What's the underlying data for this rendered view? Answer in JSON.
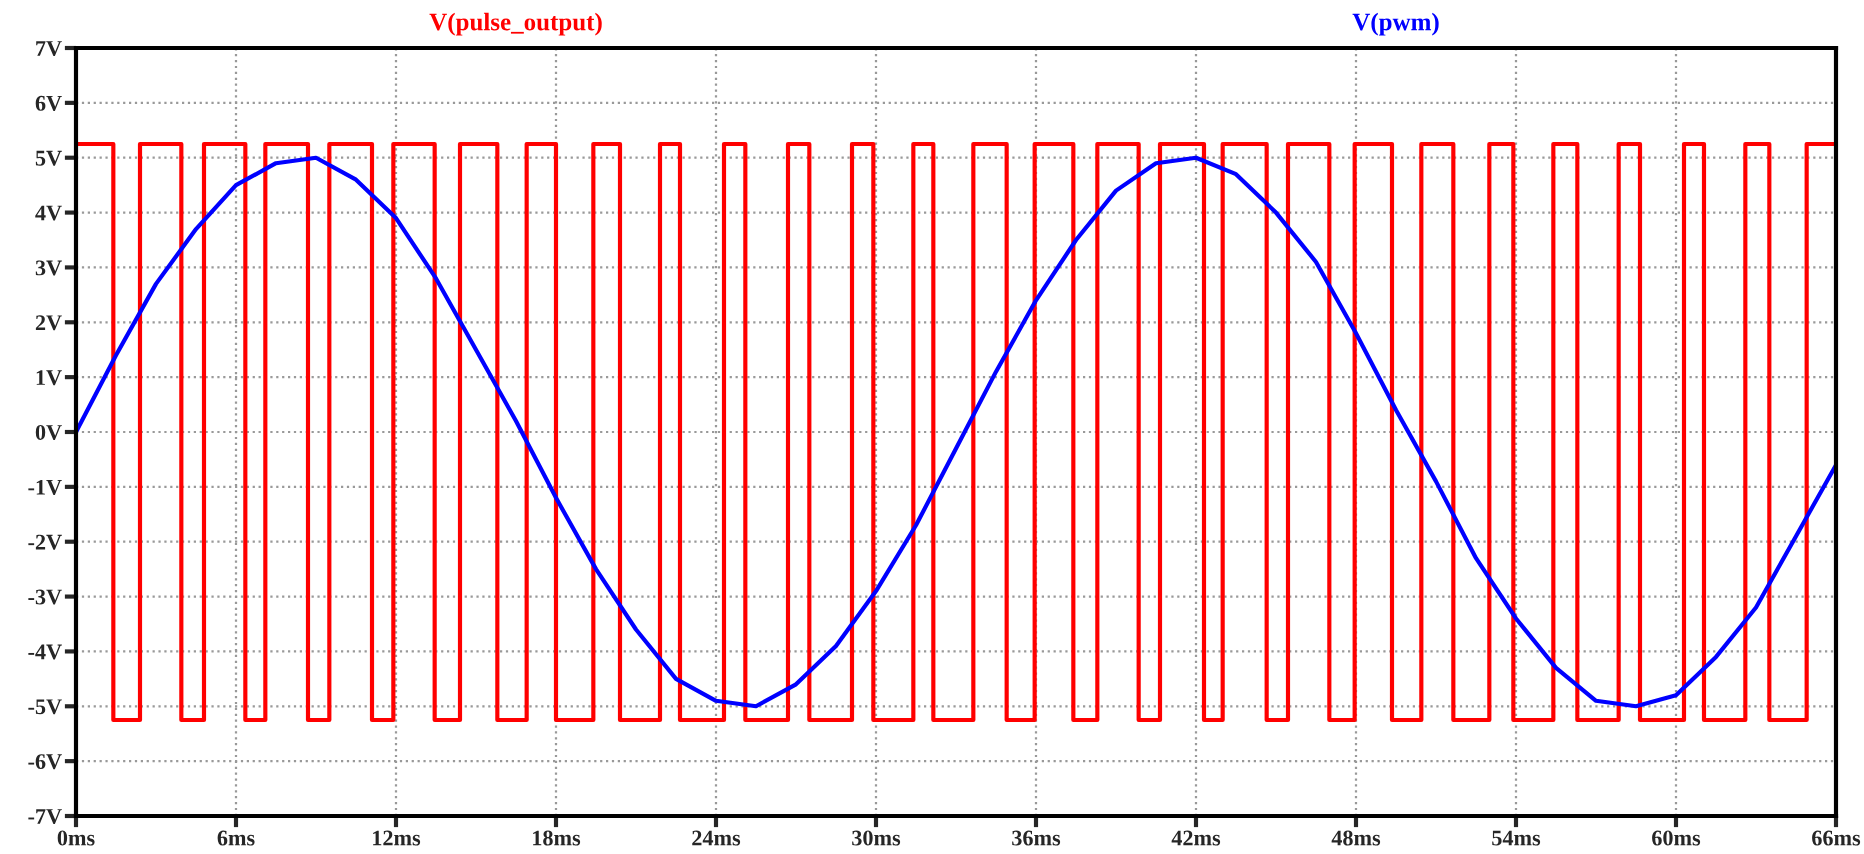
{
  "chart_data": {
    "type": "line",
    "xlim": [
      0,
      66
    ],
    "ylim": [
      -7,
      7
    ],
    "xticks": [
      {
        "value": 0,
        "label": "0ms"
      },
      {
        "value": 6,
        "label": "6ms"
      },
      {
        "value": 12,
        "label": "12ms"
      },
      {
        "value": 18,
        "label": "18ms"
      },
      {
        "value": 24,
        "label": "24ms"
      },
      {
        "value": 30,
        "label": "30ms"
      },
      {
        "value": 36,
        "label": "36ms"
      },
      {
        "value": 42,
        "label": "42ms"
      },
      {
        "value": 48,
        "label": "48ms"
      },
      {
        "value": 54,
        "label": "54ms"
      },
      {
        "value": 60,
        "label": "60ms"
      },
      {
        "value": 66,
        "label": "66ms"
      }
    ],
    "yticks": [
      {
        "value": -7,
        "label": "-7V"
      },
      {
        "value": -6,
        "label": "-6V"
      },
      {
        "value": -5,
        "label": "-5V"
      },
      {
        "value": -4,
        "label": "-4V"
      },
      {
        "value": -3,
        "label": "-3V"
      },
      {
        "value": -2,
        "label": "-2V"
      },
      {
        "value": -1,
        "label": "-1V"
      },
      {
        "value": 0,
        "label": "0V"
      },
      {
        "value": 1,
        "label": "1V"
      },
      {
        "value": 2,
        "label": "2V"
      },
      {
        "value": 3,
        "label": "3V"
      },
      {
        "value": 4,
        "label": "4V"
      },
      {
        "value": 5,
        "label": "5V"
      },
      {
        "value": 6,
        "label": "6V"
      },
      {
        "value": 7,
        "label": "7V"
      }
    ],
    "grid": true,
    "legend": "top",
    "line_style": "solid",
    "marker": "none",
    "series": [
      {
        "name": "V(pulse_output)",
        "type": "step",
        "color": "#ff0000",
        "x": [
          0,
          1.4,
          2.4,
          3.95,
          4.8,
          6.35,
          7.1,
          8.7,
          9.5,
          11.1,
          11.9,
          13.45,
          14.4,
          15.8,
          16.9,
          18.0,
          19.4,
          20.4,
          21.9,
          22.65,
          24.3,
          25.1,
          26.7,
          27.5,
          29.1,
          29.9,
          31.4,
          32.15,
          33.65,
          34.9,
          35.95,
          37.4,
          38.3,
          39.85,
          40.65,
          42.3,
          43.0,
          44.65,
          45.45,
          47.0,
          47.95,
          49.35,
          50.45,
          51.65,
          53.0,
          53.9,
          55.4,
          56.3,
          57.85,
          58.65,
          60.3,
          61.05,
          62.6,
          63.5,
          64.9,
          66
        ],
        "values": [
          5.25,
          -5.25,
          5.25,
          -5.25,
          5.25,
          -5.25,
          5.25,
          -5.25,
          5.25,
          -5.25,
          5.25,
          -5.25,
          5.25,
          -5.25,
          5.25,
          -5.25,
          5.25,
          -5.25,
          5.25,
          -5.25,
          5.25,
          -5.25,
          5.25,
          -5.25,
          5.25,
          -5.25,
          5.25,
          -5.25,
          5.25,
          -5.25,
          5.25,
          -5.25,
          5.25,
          -5.25,
          5.25,
          -5.25,
          5.25,
          -5.25,
          5.25,
          -5.25,
          5.25,
          -5.25,
          5.25,
          -5.25,
          5.25,
          -5.25,
          5.25,
          -5.25,
          5.25,
          -5.25,
          5.25,
          -5.25,
          5.25,
          -5.25,
          5.25,
          5.25
        ]
      },
      {
        "name": "V(pwm)",
        "color": "#0000ff",
        "x": [
          0,
          1.5,
          3,
          4.5,
          6,
          7.5,
          9,
          10.5,
          12,
          13.5,
          15,
          16.5,
          18,
          19.5,
          21,
          22.5,
          24,
          25.5,
          27,
          28.5,
          30,
          31.5,
          33,
          34.5,
          36,
          37.5,
          39,
          40.5,
          42,
          43.5,
          45,
          46.5,
          48,
          49.5,
          51,
          52.5,
          54,
          55.5,
          57,
          58.5,
          60,
          61.5,
          63,
          64.5,
          66
        ],
        "values": [
          0,
          1.4,
          2.7,
          3.7,
          4.5,
          4.9,
          5.0,
          4.6,
          3.9,
          2.8,
          1.5,
          0.2,
          -1.2,
          -2.5,
          -3.6,
          -4.5,
          -4.9,
          -5.0,
          -4.6,
          -3.9,
          -2.9,
          -1.7,
          -0.3,
          1.1,
          2.4,
          3.5,
          4.4,
          4.9,
          5.0,
          4.7,
          4.0,
          3.1,
          1.8,
          0.4,
          -0.9,
          -2.3,
          -3.4,
          -4.3,
          -4.9,
          -5.0,
          -4.8,
          -4.1,
          -3.2,
          -1.9,
          -0.6
        ]
      }
    ]
  }
}
